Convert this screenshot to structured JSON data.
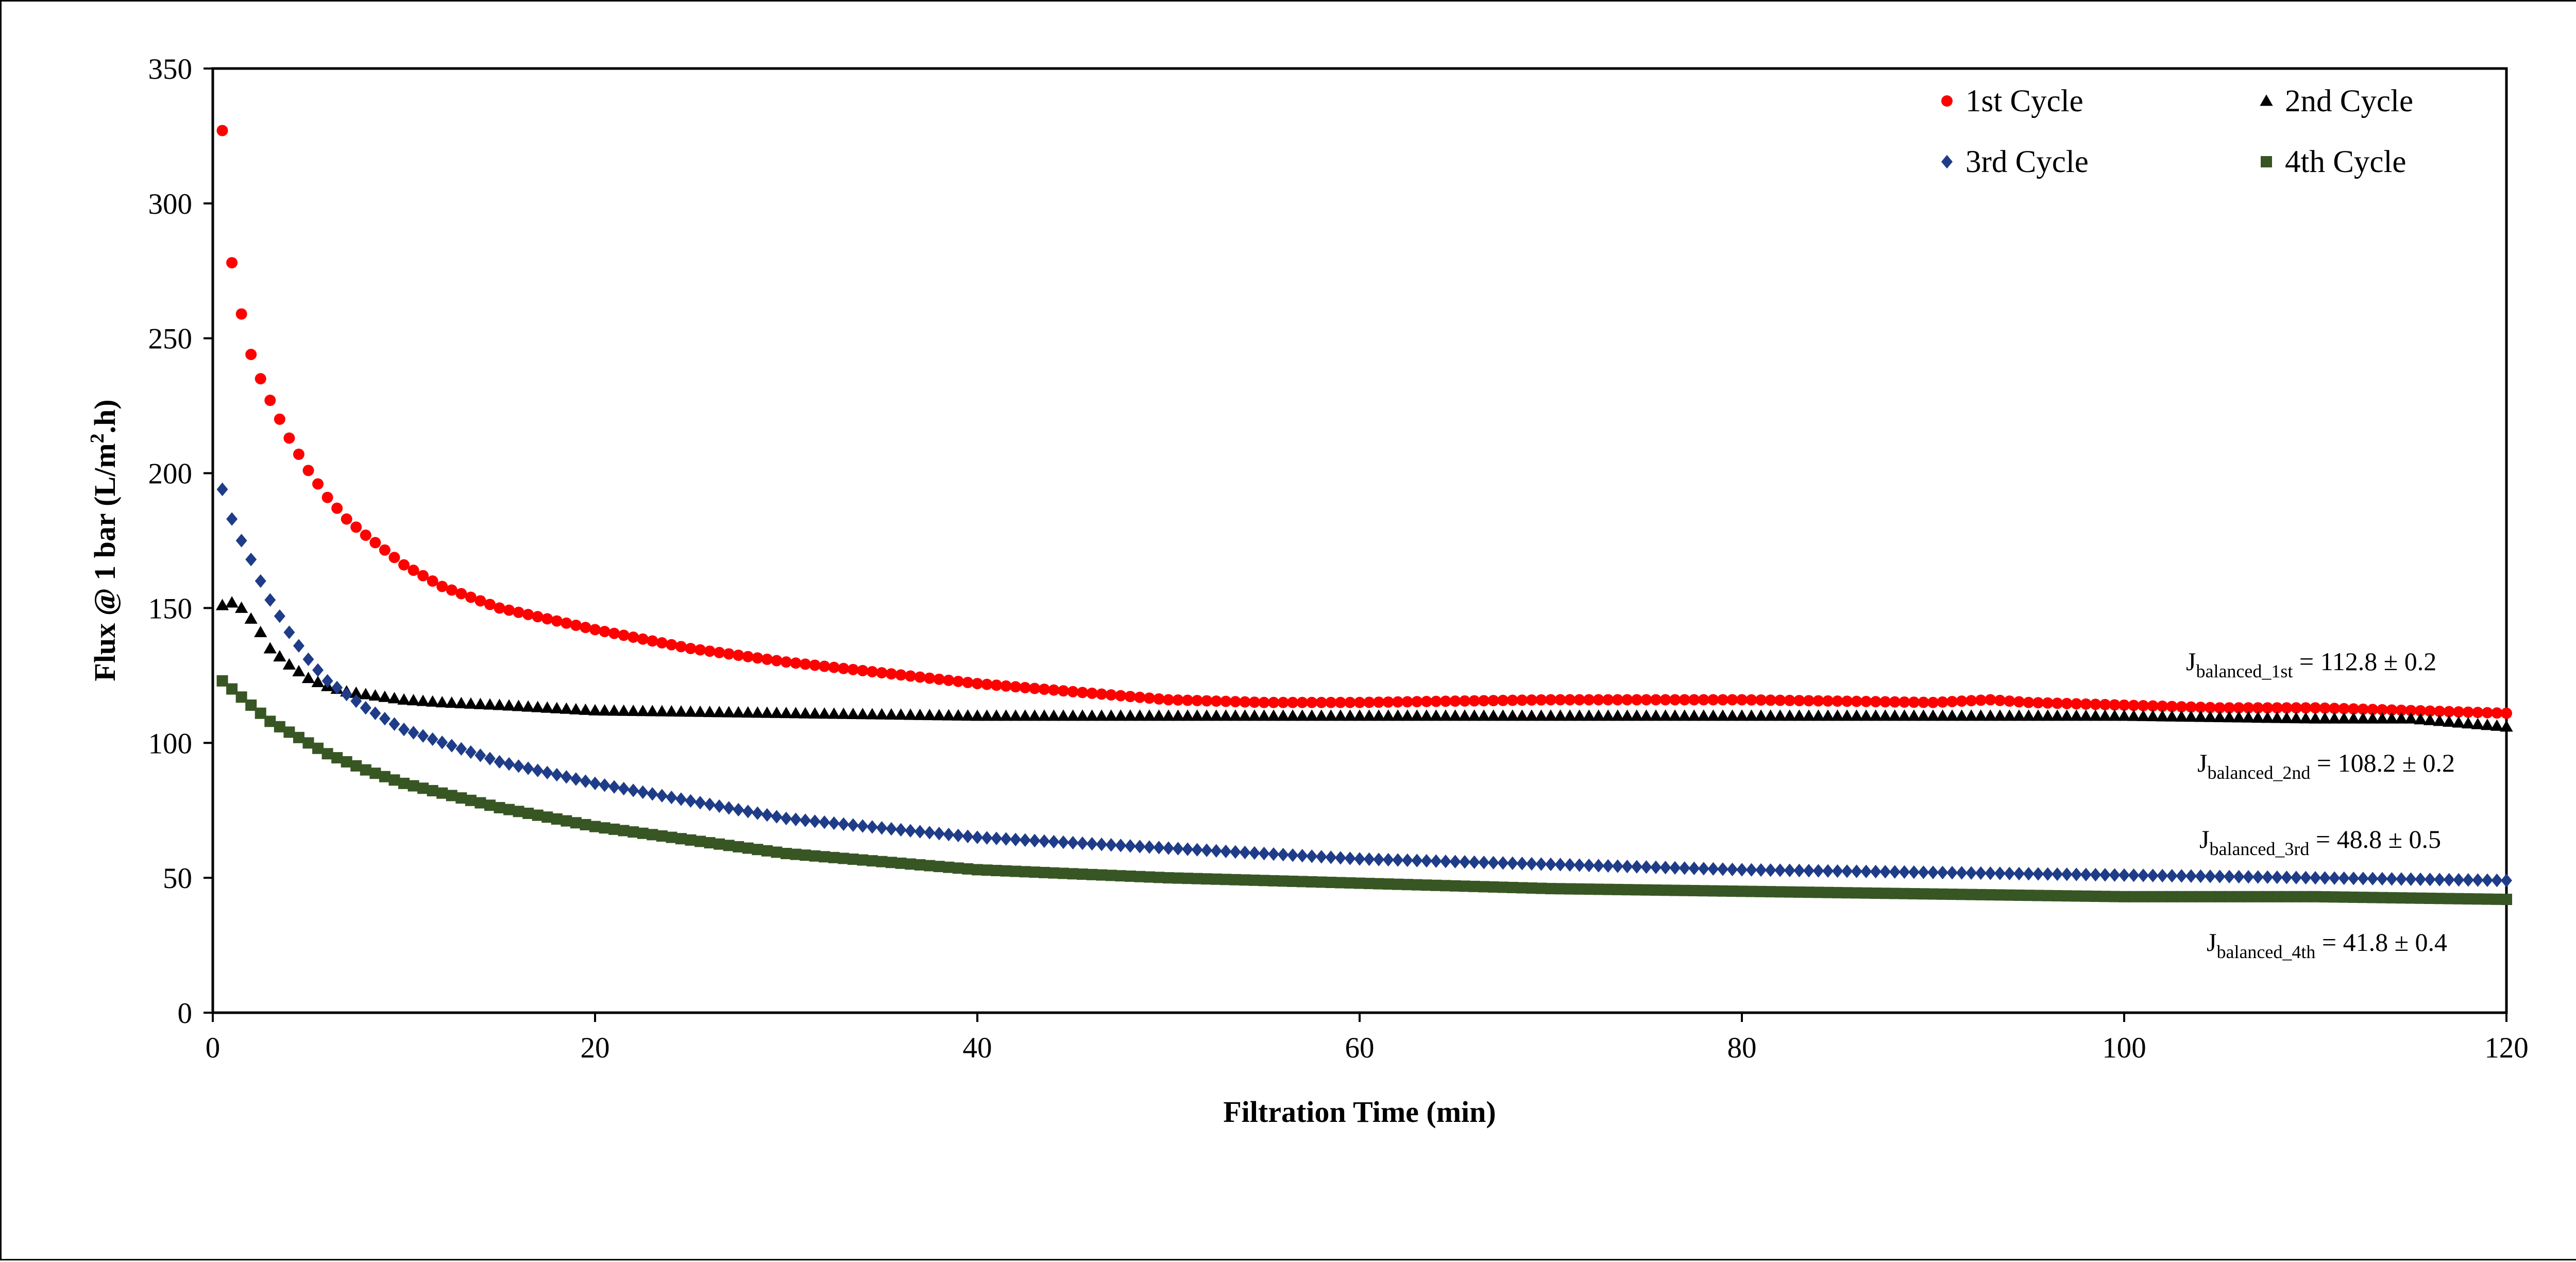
{
  "chart_data": {
    "type": "scatter",
    "title": "",
    "xlabel": "Filtration Time (min)",
    "ylabel_main": "Flux @ 1 bar (L/m",
    "ylabel_sup": "2",
    "ylabel_tail": ".h)",
    "xlim": [
      0,
      120
    ],
    "ylim": [
      0,
      350
    ],
    "xticks": [
      "0",
      "20",
      "40",
      "60",
      "80",
      "100",
      "120"
    ],
    "yticks": [
      "0",
      "50",
      "100",
      "150",
      "200",
      "250",
      "300",
      "350"
    ],
    "grid": false,
    "legend_position": "top-right",
    "series": [
      {
        "name": "1st Cycle",
        "marker": "circle",
        "color": "#ff0000",
        "x": [
          0.5,
          1,
          1.5,
          2,
          2.5,
          3,
          4,
          5,
          6,
          7,
          8,
          10,
          12,
          15,
          20,
          25,
          30,
          40,
          50,
          55,
          60,
          70,
          80,
          90,
          93,
          95,
          100,
          105,
          110,
          115,
          120
        ],
        "y": [
          327,
          278,
          259,
          244,
          235,
          227,
          213,
          201,
          191,
          183,
          177,
          166,
          158,
          150,
          142,
          135,
          130,
          122,
          116,
          115,
          115,
          116,
          116,
          115,
          116,
          115,
          114,
          113,
          113,
          112,
          111
        ]
      },
      {
        "name": "2nd Cycle",
        "marker": "triangle",
        "color": "#000000",
        "x": [
          0.5,
          1,
          1.5,
          2,
          2.5,
          3,
          4,
          5,
          6,
          7,
          8,
          10,
          12,
          15,
          20,
          30,
          40,
          60,
          80,
          100,
          110,
          115,
          120
        ],
        "y": [
          151,
          152,
          150,
          146,
          141,
          135,
          129,
          124,
          121,
          119,
          118,
          116,
          115,
          114,
          112,
          111,
          110,
          110,
          110,
          110,
          109,
          109,
          106
        ]
      },
      {
        "name": "3rd Cycle",
        "marker": "diamond",
        "color": "#1f3c88",
        "x": [
          0.5,
          1,
          1.5,
          2,
          2.5,
          3,
          4,
          5,
          6,
          8,
          10,
          15,
          20,
          30,
          40,
          50,
          60,
          70,
          80,
          90,
          100,
          110,
          120
        ],
        "y": [
          194,
          183,
          175,
          168,
          160,
          153,
          141,
          131,
          123,
          113,
          105,
          93,
          85,
          72,
          65,
          61,
          57,
          55,
          53,
          52,
          51,
          50,
          49
        ]
      },
      {
        "name": "4th Cycle",
        "marker": "square",
        "color": "#375623",
        "x": [
          0.5,
          1,
          1.5,
          2,
          2.5,
          3,
          4,
          5,
          6,
          8,
          10,
          15,
          20,
          30,
          40,
          50,
          60,
          70,
          80,
          90,
          100,
          110,
          120
        ],
        "y": [
          123,
          120,
          117,
          114,
          111,
          108,
          104,
          100,
          96,
          90,
          85,
          76,
          69,
          59,
          53,
          50,
          48,
          46,
          45,
          44,
          43,
          43,
          42
        ]
      }
    ],
    "annotations": [
      {
        "prefix": "J",
        "subscript": "balanced_1st",
        "text": " = 112.8 ± 0.2",
        "series_ref": "1st Cycle"
      },
      {
        "prefix": "J",
        "subscript": "balanced_2nd",
        "text": " = 108.2 ± 0.2",
        "series_ref": "2nd Cycle"
      },
      {
        "prefix": "J",
        "subscript": "balanced_3rd",
        "text": " = 48.8 ± 0.5",
        "series_ref": "3rd Cycle"
      },
      {
        "prefix": "J",
        "subscript": "balanced_4th",
        "text": " = 41.8 ± 0.4",
        "series_ref": "4th Cycle"
      }
    ]
  }
}
